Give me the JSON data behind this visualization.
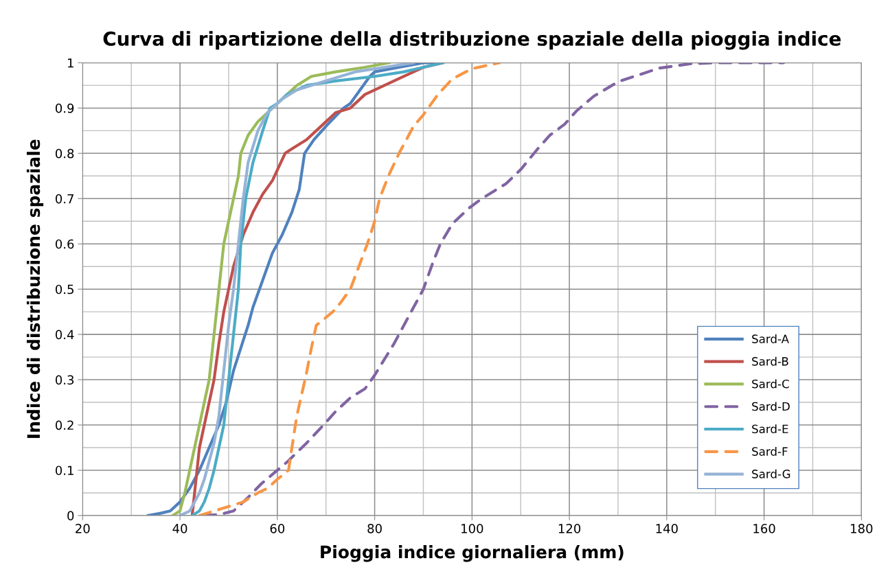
{
  "chart_data": {
    "type": "line",
    "title": "Curva di ripartizione della distribuzione spaziale della pioggia indice",
    "xlabel": "Pioggia indice giornaliera (mm)",
    "ylabel": "Indice di distribuzione spaziale",
    "xlim": [
      20,
      180
    ],
    "xticks": [
      20,
      40,
      60,
      80,
      100,
      120,
      140,
      160,
      180
    ],
    "ylim": [
      0,
      1
    ],
    "yticks": [
      0,
      0.1,
      0.2,
      0.3,
      0.4,
      0.5,
      0.6,
      0.7,
      0.8,
      0.9,
      1
    ],
    "grid": true,
    "legend": "bottom right",
    "marker": "none",
    "series": [
      {
        "name": "Sard-A",
        "color": "#4f81bd",
        "line_style": "solid",
        "x": [
          33.5,
          36,
          38,
          40,
          42,
          44,
          46,
          48,
          49.5,
          51,
          52.5,
          54,
          55,
          57,
          59,
          61,
          63,
          64.5,
          65.6,
          67.5,
          70,
          73.6,
          75,
          77,
          79,
          80,
          85,
          90,
          93
        ],
        "values": [
          0,
          0.005,
          0.01,
          0.03,
          0.06,
          0.1,
          0.15,
          0.2,
          0.25,
          0.32,
          0.37,
          0.42,
          0.46,
          0.52,
          0.58,
          0.62,
          0.67,
          0.72,
          0.8,
          0.83,
          0.86,
          0.9,
          0.91,
          0.94,
          0.97,
          0.98,
          0.99,
          1.0,
          1.0
        ]
      },
      {
        "name": "Sard-B",
        "color": "#c0504d",
        "line_style": "solid",
        "x": [
          42.5,
          43,
          43.5,
          44,
          45,
          46,
          47,
          48,
          49,
          50,
          51,
          53,
          55,
          57,
          59,
          61.6,
          63,
          66,
          68,
          72,
          75,
          78,
          82,
          86,
          90,
          94
        ],
        "values": [
          0,
          0.05,
          0.1,
          0.15,
          0.2,
          0.25,
          0.3,
          0.38,
          0.45,
          0.5,
          0.55,
          0.62,
          0.67,
          0.71,
          0.74,
          0.8,
          0.81,
          0.83,
          0.85,
          0.89,
          0.9,
          0.93,
          0.95,
          0.97,
          0.99,
          1.0
        ]
      },
      {
        "name": "Sard-C",
        "color": "#9bbb59",
        "line_style": "solid",
        "x": [
          38.5,
          40,
          41,
          42,
          43,
          44,
          45,
          46,
          47,
          48,
          49,
          50,
          51,
          52,
          52.5,
          54,
          56,
          58,
          60,
          62,
          64,
          67,
          72,
          78,
          83
        ],
        "values": [
          0,
          0.01,
          0.05,
          0.1,
          0.15,
          0.2,
          0.25,
          0.3,
          0.4,
          0.5,
          0.6,
          0.65,
          0.7,
          0.75,
          0.8,
          0.84,
          0.87,
          0.89,
          0.91,
          0.93,
          0.95,
          0.97,
          0.98,
          0.99,
          1.0
        ]
      },
      {
        "name": "Sard-D",
        "color": "#8064a2",
        "line_style": "dashed",
        "x": [
          45,
          48,
          51,
          54,
          56.7,
          60,
          62.2,
          66,
          69.5,
          72,
          75,
          78,
          80,
          84,
          87,
          90,
          92,
          93.5,
          96,
          99.5,
          102,
          107,
          110,
          113.5,
          116,
          119,
          121.4,
          125,
          130,
          138.4,
          145,
          150,
          164
        ],
        "values": [
          0,
          0.002,
          0.01,
          0.04,
          0.07,
          0.1,
          0.12,
          0.16,
          0.2,
          0.23,
          0.26,
          0.28,
          0.31,
          0.38,
          0.44,
          0.5,
          0.56,
          0.6,
          0.645,
          0.68,
          0.7,
          0.733,
          0.764,
          0.81,
          0.84,
          0.864,
          0.893,
          0.926,
          0.958,
          0.988,
          0.998,
          1.0,
          1.0
        ]
      },
      {
        "name": "Sard-E",
        "color": "#4bacc6",
        "line_style": "solid",
        "x": [
          42.5,
          44,
          45,
          46,
          47,
          48,
          49,
          50,
          51,
          52,
          52.5,
          53.5,
          55,
          57,
          58.5,
          60,
          62,
          66,
          72,
          80,
          86,
          90,
          94
        ],
        "values": [
          0,
          0.01,
          0.03,
          0.06,
          0.1,
          0.15,
          0.2,
          0.3,
          0.4,
          0.5,
          0.6,
          0.7,
          0.78,
          0.85,
          0.9,
          0.91,
          0.93,
          0.95,
          0.96,
          0.97,
          0.98,
          0.99,
          1.0
        ]
      },
      {
        "name": "Sard-F",
        "color": "#f79646",
        "line_style": "dashed",
        "x": [
          44,
          47,
          50,
          53,
          56,
          58,
          60,
          62.3,
          63,
          64,
          65.9,
          67,
          68,
          71.4,
          73,
          75,
          78.5,
          80,
          81,
          83,
          85,
          88,
          90,
          93,
          95.9,
          100,
          105.6
        ],
        "values": [
          0,
          0.01,
          0.02,
          0.03,
          0.05,
          0.06,
          0.08,
          0.1,
          0.15,
          0.22,
          0.31,
          0.37,
          0.42,
          0.45,
          0.47,
          0.5,
          0.6,
          0.65,
          0.7,
          0.754,
          0.8,
          0.86,
          0.885,
          0.93,
          0.964,
          0.987,
          1.0
        ]
      },
      {
        "name": "Sard-G",
        "color": "#95b3d7",
        "line_style": "solid",
        "x": [
          40,
          42,
          43,
          44,
          45,
          46,
          47,
          48,
          49,
          50,
          51,
          52,
          53,
          54,
          56,
          58,
          61,
          64,
          70,
          76,
          82,
          88
        ],
        "values": [
          0,
          0.01,
          0.03,
          0.05,
          0.08,
          0.12,
          0.16,
          0.22,
          0.32,
          0.42,
          0.5,
          0.6,
          0.7,
          0.78,
          0.85,
          0.89,
          0.92,
          0.94,
          0.96,
          0.98,
          0.99,
          1.0
        ]
      }
    ]
  }
}
